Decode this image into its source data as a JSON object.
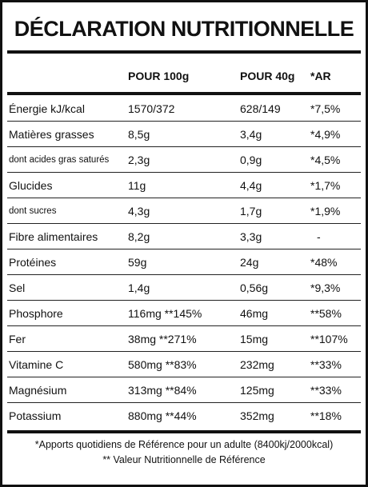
{
  "title": "DÉCLARATION NUTRITIONNELLE",
  "table": {
    "header": [
      "POUR 100g",
      "POUR 40g",
      "*AR"
    ],
    "rows": [
      [
        "Énergie kJ/kcal",
        "1570/372",
        "628/149",
        "*7,5%"
      ],
      [
        "Matières grasses",
        "8,5g",
        "3,4g",
        "*4,9%"
      ],
      [
        "dont acides gras saturés",
        "2,3g",
        "0,9g",
        "*4,5%"
      ],
      [
        "Glucides",
        "11g",
        "4,4g",
        "*1,7%"
      ],
      [
        "dont sucres",
        "4,3g",
        "1,7g",
        "*1,9%"
      ],
      [
        "Fibre alimentaires",
        "8,2g",
        "3,3g",
        "-"
      ],
      [
        "Protéines",
        "59g",
        "24g",
        "*48%"
      ],
      [
        "Sel",
        "1,4g",
        "0,56g",
        "*9,3%"
      ],
      [
        "Phosphore",
        "116mg **145%",
        "46mg",
        "**58%"
      ],
      [
        "Fer",
        "38mg **271%",
        "15mg",
        "**107%"
      ],
      [
        "Vitamine C",
        "580mg **83%",
        "232mg",
        "**33%"
      ],
      [
        "Magnésium",
        "313mg **84%",
        "125mg",
        "**33%"
      ],
      [
        "Potassium",
        "880mg **44%",
        "352mg",
        "**18%"
      ]
    ]
  },
  "footnotes": [
    "*Apports quotidiens de Référence pour un adulte (8400kj/2000kcal)",
    "** Valeur Nutritionnelle de Référence"
  ]
}
